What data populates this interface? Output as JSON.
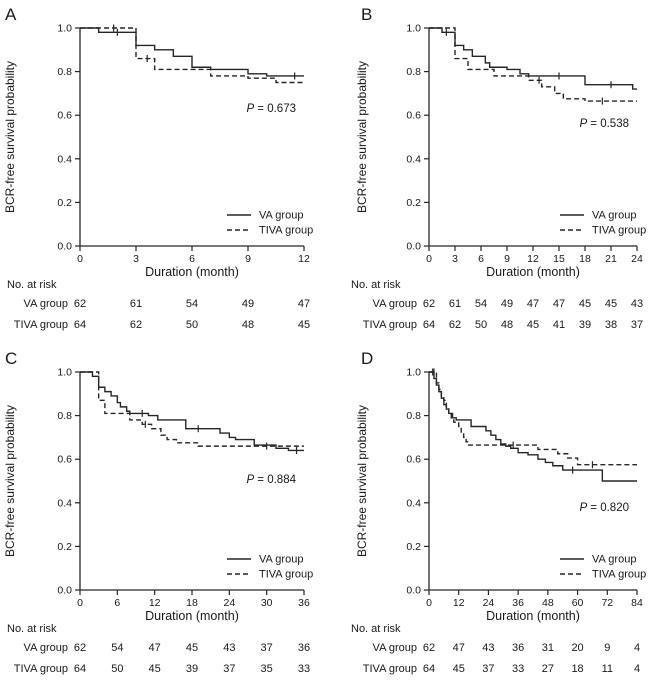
{
  "figure": {
    "background": "#ffffff",
    "line_color": "#262626",
    "text_color": "#1a1a1a",
    "ylabel": "BCR-free survival probability",
    "xlabel": "Duration (month)",
    "risk_header": "No. at risk",
    "legend": [
      {
        "label": "VA group",
        "style": "solid"
      },
      {
        "label": "TIVA group",
        "style": "dashed"
      }
    ]
  },
  "chart_data": [
    {
      "type": "line",
      "panel": "A",
      "p_value": "P = 0.673",
      "xlabel": "Duration (month)",
      "ylabel": "BCR-free survival probability",
      "xlim": [
        0,
        12
      ],
      "ylim": [
        0.0,
        1.0
      ],
      "xticks": [
        0,
        3,
        6,
        9,
        12
      ],
      "yticks": [
        0.0,
        0.2,
        0.4,
        0.6,
        0.8,
        1.0
      ],
      "series": [
        {
          "name": "VA group",
          "style": "solid",
          "steps": [
            [
              0,
              1.0
            ],
            [
              1,
              0.98
            ],
            [
              3,
              0.92
            ],
            [
              4,
              0.9
            ],
            [
              5,
              0.87
            ],
            [
              6,
              0.82
            ],
            [
              7,
              0.81
            ],
            [
              9,
              0.79
            ],
            [
              10,
              0.78
            ]
          ],
          "end": 12,
          "censors": [
            2,
            11.5
          ]
        },
        {
          "name": "TIVA group",
          "style": "dashed",
          "steps": [
            [
              0,
              1.0
            ],
            [
              3,
              0.86
            ],
            [
              4,
              0.81
            ],
            [
              7,
              0.78
            ],
            [
              9,
              0.77
            ],
            [
              10.5,
              0.75
            ]
          ],
          "end": 12,
          "censors": [
            1.8,
            3.6
          ]
        }
      ],
      "risk_table": {
        "header": "No. at risk",
        "rows": [
          {
            "label": "VA group",
            "values": [
              62,
              61,
              54,
              49,
              47
            ]
          },
          {
            "label": "TIVA group",
            "values": [
              64,
              62,
              50,
              48,
              45
            ]
          }
        ]
      }
    },
    {
      "type": "line",
      "panel": "B",
      "p_value": "P = 0.538",
      "xlabel": "Duration (month)",
      "ylabel": "BCR-free survival probability",
      "xlim": [
        0,
        24
      ],
      "ylim": [
        0.0,
        1.0
      ],
      "xticks": [
        0,
        3,
        6,
        9,
        12,
        15,
        18,
        21,
        24
      ],
      "yticks": [
        0.0,
        0.2,
        0.4,
        0.6,
        0.8,
        1.0
      ],
      "series": [
        {
          "name": "VA group",
          "style": "solid",
          "steps": [
            [
              0,
              1.0
            ],
            [
              1.5,
              0.98
            ],
            [
              3,
              0.92
            ],
            [
              4,
              0.9
            ],
            [
              5,
              0.87
            ],
            [
              6.5,
              0.84
            ],
            [
              7,
              0.82
            ],
            [
              9,
              0.81
            ],
            [
              10.5,
              0.79
            ],
            [
              11.5,
              0.78
            ],
            [
              18,
              0.74
            ],
            [
              23.5,
              0.72
            ]
          ],
          "end": 24,
          "censors": [
            2,
            15,
            21
          ]
        },
        {
          "name": "TIVA group",
          "style": "dashed",
          "steps": [
            [
              0,
              1.0
            ],
            [
              3,
              0.86
            ],
            [
              4.5,
              0.81
            ],
            [
              7.5,
              0.78
            ],
            [
              11.5,
              0.76
            ],
            [
              13,
              0.73
            ],
            [
              14.5,
              0.7
            ],
            [
              15.5,
              0.675
            ],
            [
              18,
              0.665
            ]
          ],
          "end": 24,
          "censors": [
            12.7,
            20
          ]
        }
      ],
      "risk_table": {
        "header": "No. at risk",
        "rows": [
          {
            "label": "VA group",
            "values": [
              62,
              61,
              54,
              49,
              47,
              47,
              45,
              45,
              43
            ]
          },
          {
            "label": "TIVA group",
            "values": [
              64,
              62,
              50,
              48,
              45,
              41,
              39,
              38,
              37
            ]
          }
        ]
      }
    },
    {
      "type": "line",
      "panel": "C",
      "p_value": "P = 0.884",
      "xlabel": "Duration (month)",
      "ylabel": "BCR-free survival probability",
      "xlim": [
        0,
        36
      ],
      "ylim": [
        0.0,
        1.0
      ],
      "xticks": [
        0,
        6,
        12,
        18,
        24,
        30,
        36
      ],
      "yticks": [
        0.0,
        0.2,
        0.4,
        0.6,
        0.8,
        1.0
      ],
      "series": [
        {
          "name": "VA group",
          "style": "solid",
          "steps": [
            [
              0,
              1.0
            ],
            [
              2,
              0.98
            ],
            [
              3,
              0.93
            ],
            [
              4,
              0.91
            ],
            [
              5,
              0.89
            ],
            [
              6,
              0.86
            ],
            [
              6.5,
              0.84
            ],
            [
              7.5,
              0.82
            ],
            [
              8,
              0.81
            ],
            [
              11,
              0.8
            ],
            [
              12.5,
              0.78
            ],
            [
              17,
              0.74
            ],
            [
              22.5,
              0.72
            ],
            [
              24,
              0.7
            ],
            [
              25,
              0.69
            ],
            [
              28,
              0.665
            ],
            [
              31.5,
              0.65
            ],
            [
              33.5,
              0.64
            ]
          ],
          "end": 36,
          "censors": [
            10,
            19,
            34.8
          ]
        },
        {
          "name": "TIVA group",
          "style": "dashed",
          "steps": [
            [
              0,
              1.0
            ],
            [
              3,
              0.87
            ],
            [
              4,
              0.81
            ],
            [
              8,
              0.78
            ],
            [
              10,
              0.76
            ],
            [
              11.5,
              0.74
            ],
            [
              13,
              0.71
            ],
            [
              14,
              0.69
            ],
            [
              15.5,
              0.675
            ],
            [
              19,
              0.66
            ]
          ],
          "end": 36,
          "censors": [
            10.5,
            30
          ]
        }
      ],
      "risk_table": {
        "header": "No. at risk",
        "rows": [
          {
            "label": "VA group",
            "values": [
              62,
              54,
              47,
              45,
              43,
              37,
              36
            ]
          },
          {
            "label": "TIVA group",
            "values": [
              64,
              50,
              45,
              39,
              37,
              35,
              33
            ]
          }
        ]
      }
    },
    {
      "type": "line",
      "panel": "D",
      "p_value": "P = 0.820",
      "xlabel": "Duration (month)",
      "ylabel": "BCR-free survival probability",
      "xlim": [
        0,
        84
      ],
      "ylim": [
        0.0,
        1.0
      ],
      "xticks": [
        0,
        12,
        24,
        36,
        48,
        60,
        72,
        84
      ],
      "yticks": [
        0.0,
        0.2,
        0.4,
        0.6,
        0.8,
        1.0
      ],
      "series": [
        {
          "name": "VA group",
          "style": "solid",
          "steps": [
            [
              0,
              1.0
            ],
            [
              2,
              0.97
            ],
            [
              3,
              0.94
            ],
            [
              4,
              0.91
            ],
            [
              5,
              0.88
            ],
            [
              6,
              0.85
            ],
            [
              7,
              0.83
            ],
            [
              8,
              0.81
            ],
            [
              9.5,
              0.79
            ],
            [
              11,
              0.78
            ],
            [
              17,
              0.75
            ],
            [
              23,
              0.73
            ],
            [
              25,
              0.71
            ],
            [
              27,
              0.69
            ],
            [
              29,
              0.67
            ],
            [
              31,
              0.66
            ],
            [
              33,
              0.65
            ],
            [
              36,
              0.63
            ],
            [
              40,
              0.62
            ],
            [
              44,
              0.6
            ],
            [
              47,
              0.585
            ],
            [
              50,
              0.57
            ],
            [
              54,
              0.55
            ],
            [
              70,
              0.5
            ]
          ],
          "end": 84,
          "censors": [
            1.5,
            58
          ]
        },
        {
          "name": "TIVA group",
          "style": "dashed",
          "steps": [
            [
              0,
              1.0
            ],
            [
              3,
              0.95
            ],
            [
              4,
              0.92
            ],
            [
              5,
              0.89
            ],
            [
              6,
              0.87
            ],
            [
              7,
              0.84
            ],
            [
              8,
              0.81
            ],
            [
              9,
              0.79
            ],
            [
              10,
              0.77
            ],
            [
              12,
              0.75
            ],
            [
              13,
              0.72
            ],
            [
              14,
              0.7
            ],
            [
              15,
              0.68
            ],
            [
              16,
              0.665
            ],
            [
              44,
              0.645
            ],
            [
              52,
              0.625
            ],
            [
              56,
              0.605
            ],
            [
              60,
              0.575
            ]
          ],
          "end": 84,
          "censors": [
            2,
            34,
            66
          ]
        }
      ],
      "risk_table": {
        "header": "No. at risk",
        "rows": [
          {
            "label": "VA group",
            "values": [
              62,
              47,
              43,
              36,
              31,
              20,
              9,
              4
            ]
          },
          {
            "label": "TIVA group",
            "values": [
              64,
              45,
              37,
              33,
              27,
              18,
              11,
              4
            ]
          }
        ]
      }
    }
  ]
}
